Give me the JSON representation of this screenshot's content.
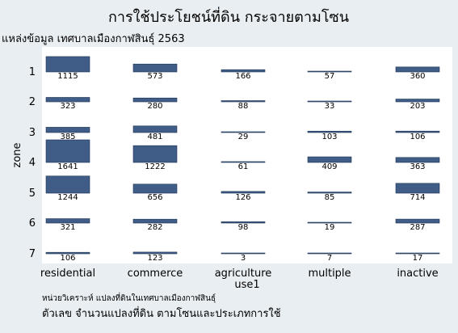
{
  "chart_data": {
    "type": "bar",
    "title": "การใช้ประโยชน์ที่ดิน กระจายตามโซน",
    "subtitle": "แหล่งข้อมูล เทศบาลเมืองกาฬสินธุ์ 2563",
    "xlabel": "use1",
    "ylabel": "zone",
    "note": "หน่วยวิเคราะห์ แปลงที่ดินในเทศบาลเมืองกาฬสินธุ์",
    "caption": "ตัวเลข จำนวนแปลงที่ดิน ตามโซนและประเภทการใช้",
    "categories": [
      "residential",
      "commerce",
      "agriculture",
      "multiple",
      "inactive"
    ],
    "zones": [
      "1",
      "2",
      "3",
      "4",
      "5",
      "6",
      "7"
    ],
    "values": [
      [
        1115,
        573,
        166,
        57,
        360
      ],
      [
        323,
        280,
        88,
        33,
        203
      ],
      [
        385,
        481,
        29,
        103,
        106
      ],
      [
        1641,
        1222,
        61,
        409,
        363
      ],
      [
        1244,
        656,
        126,
        85,
        714
      ],
      [
        321,
        282,
        98,
        19,
        287
      ],
      [
        106,
        123,
        3,
        7,
        17
      ]
    ],
    "colors": {
      "bar": "#3f5d86",
      "plot_bg": "#ffffff",
      "outer_bg": "#e9eef2"
    }
  }
}
